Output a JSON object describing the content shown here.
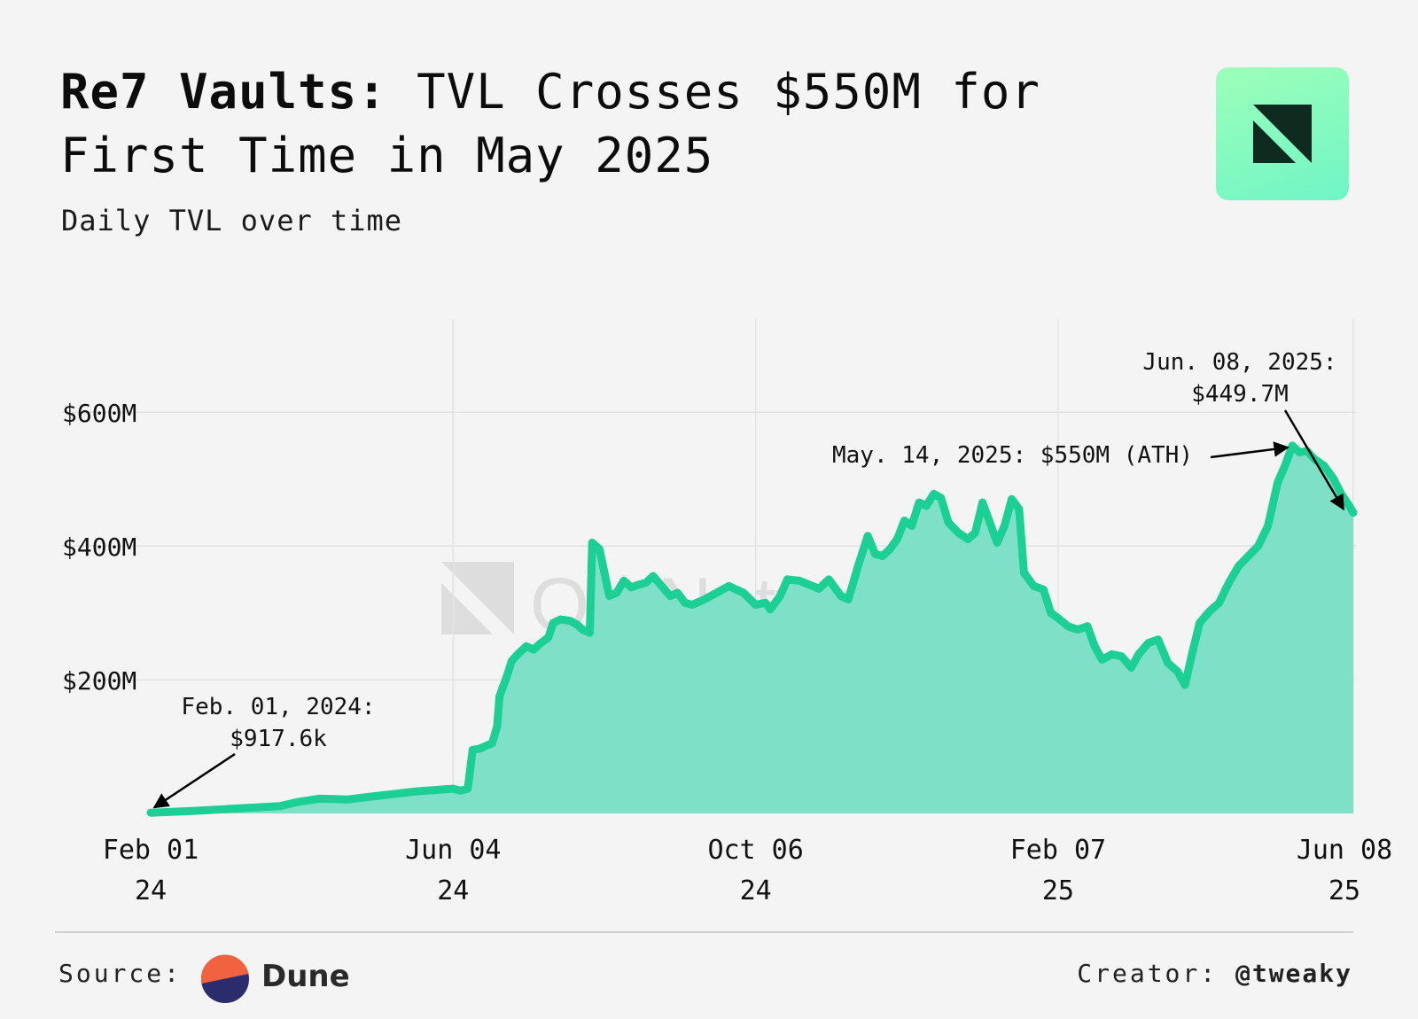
{
  "header": {
    "title_brand": "Re7 Vaults:",
    "title_rest": "TVL Crosses $550M for First Time in May 2025",
    "subtitle": "Daily TVL over time"
  },
  "watermark": "OurNetwork",
  "footer": {
    "source_label": "Source:",
    "source_name": "Dune",
    "creator_label": "Creator:",
    "creator_handle": "@tweaky"
  },
  "colors": {
    "line": "#1ccf94",
    "area": "#7ee0c6",
    "grid": "#e2e2e2",
    "logo_bg": "#8ffcc0",
    "dune_orange": "#f06240",
    "dune_navy": "#2b2c6b"
  },
  "chart_data": {
    "type": "area",
    "title": "Re7 Vaults: TVL Crosses $550M for First Time in May 2025",
    "subtitle": "Daily TVL over time",
    "xlabel": "",
    "ylabel": "",
    "ylim": [
      0,
      750
    ],
    "y_unit": "$M",
    "x_range": [
      "2024-02-01",
      "2025-06-08"
    ],
    "yticks": [
      {
        "value": 200,
        "label": "$200M"
      },
      {
        "value": 400,
        "label": "$400M"
      },
      {
        "value": 600,
        "label": "$600M"
      }
    ],
    "xticks": [
      {
        "date": "2024-02-01",
        "line1": "Feb 01",
        "line2": "24"
      },
      {
        "date": "2024-06-04",
        "line1": "Jun 04",
        "line2": "24"
      },
      {
        "date": "2024-10-06",
        "line1": "Oct 06",
        "line2": "24"
      },
      {
        "date": "2025-02-07",
        "line1": "Feb 07",
        "line2": "25"
      },
      {
        "date": "2025-06-08",
        "line1": "Jun 08",
        "line2": "25"
      }
    ],
    "grid": true,
    "legend": "none",
    "series": [
      {
        "points": [
          [
            "2024-02-01",
            1
          ],
          [
            "2024-02-20",
            4
          ],
          [
            "2024-03-15",
            9
          ],
          [
            "2024-03-25",
            11
          ],
          [
            "2024-04-01",
            17
          ],
          [
            "2024-04-10",
            22
          ],
          [
            "2024-04-22",
            21
          ],
          [
            "2024-05-01",
            25
          ],
          [
            "2024-05-20",
            33
          ],
          [
            "2024-06-04",
            37
          ],
          [
            "2024-06-07",
            34
          ],
          [
            "2024-06-10",
            37
          ],
          [
            "2024-06-12",
            95
          ],
          [
            "2024-06-15",
            97
          ],
          [
            "2024-06-20",
            105
          ],
          [
            "2024-06-22",
            130
          ],
          [
            "2024-06-23",
            175
          ],
          [
            "2024-06-26",
            205
          ],
          [
            "2024-06-28",
            228
          ],
          [
            "2024-07-01",
            240
          ],
          [
            "2024-07-04",
            250
          ],
          [
            "2024-07-07",
            245
          ],
          [
            "2024-07-10",
            255
          ],
          [
            "2024-07-13",
            263
          ],
          [
            "2024-07-15",
            285
          ],
          [
            "2024-07-18",
            290
          ],
          [
            "2024-07-22",
            288
          ],
          [
            "2024-07-25",
            282
          ],
          [
            "2024-07-27",
            275
          ],
          [
            "2024-07-30",
            270
          ],
          [
            "2024-07-31",
            405
          ],
          [
            "2024-08-03",
            395
          ],
          [
            "2024-08-05",
            360
          ],
          [
            "2024-08-07",
            325
          ],
          [
            "2024-08-10",
            330
          ],
          [
            "2024-08-13",
            348
          ],
          [
            "2024-08-16",
            338
          ],
          [
            "2024-08-19",
            342
          ],
          [
            "2024-08-22",
            345
          ],
          [
            "2024-08-25",
            355
          ],
          [
            "2024-08-28",
            342
          ],
          [
            "2024-09-01",
            325
          ],
          [
            "2024-09-04",
            330
          ],
          [
            "2024-09-07",
            315
          ],
          [
            "2024-09-10",
            312
          ],
          [
            "2024-09-15",
            320
          ],
          [
            "2024-09-20",
            330
          ],
          [
            "2024-09-25",
            340
          ],
          [
            "2024-10-01",
            330
          ],
          [
            "2024-10-06",
            312
          ],
          [
            "2024-10-10",
            315
          ],
          [
            "2024-10-12",
            305
          ],
          [
            "2024-10-16",
            325
          ],
          [
            "2024-10-19",
            350
          ],
          [
            "2024-10-24",
            348
          ],
          [
            "2024-10-28",
            342
          ],
          [
            "2024-11-01",
            336
          ],
          [
            "2024-11-05",
            350
          ],
          [
            "2024-11-10",
            325
          ],
          [
            "2024-11-13",
            320
          ],
          [
            "2024-11-17",
            370
          ],
          [
            "2024-11-21",
            415
          ],
          [
            "2024-11-24",
            388
          ],
          [
            "2024-11-27",
            385
          ],
          [
            "2024-11-30",
            395
          ],
          [
            "2024-12-03",
            410
          ],
          [
            "2024-12-06",
            438
          ],
          [
            "2024-12-09",
            430
          ],
          [
            "2024-12-12",
            465
          ],
          [
            "2024-12-15",
            460
          ],
          [
            "2024-12-18",
            478
          ],
          [
            "2024-12-21",
            472
          ],
          [
            "2024-12-24",
            435
          ],
          [
            "2024-12-28",
            420
          ],
          [
            "2025-01-01",
            410
          ],
          [
            "2025-01-04",
            420
          ],
          [
            "2025-01-07",
            465
          ],
          [
            "2025-01-10",
            435
          ],
          [
            "2025-01-13",
            405
          ],
          [
            "2025-01-16",
            430
          ],
          [
            "2025-01-19",
            470
          ],
          [
            "2025-01-22",
            455
          ],
          [
            "2025-01-24",
            360
          ],
          [
            "2025-01-28",
            340
          ],
          [
            "2025-02-01",
            335
          ],
          [
            "2025-02-04",
            300
          ],
          [
            "2025-02-07",
            292
          ],
          [
            "2025-02-11",
            280
          ],
          [
            "2025-02-15",
            275
          ],
          [
            "2025-02-19",
            280
          ],
          [
            "2025-02-22",
            250
          ],
          [
            "2025-02-25",
            230
          ],
          [
            "2025-03-01",
            238
          ],
          [
            "2025-03-05",
            235
          ],
          [
            "2025-03-09",
            218
          ],
          [
            "2025-03-12",
            238
          ],
          [
            "2025-03-16",
            255
          ],
          [
            "2025-03-20",
            260
          ],
          [
            "2025-03-24",
            225
          ],
          [
            "2025-03-28",
            212
          ],
          [
            "2025-03-31",
            192
          ],
          [
            "2025-04-03",
            240
          ],
          [
            "2025-04-06",
            285
          ],
          [
            "2025-04-10",
            302
          ],
          [
            "2025-04-14",
            315
          ],
          [
            "2025-04-18",
            345
          ],
          [
            "2025-04-22",
            370
          ],
          [
            "2025-04-26",
            385
          ],
          [
            "2025-04-30",
            400
          ],
          [
            "2025-05-04",
            430
          ],
          [
            "2025-05-08",
            495
          ],
          [
            "2025-05-11",
            520
          ],
          [
            "2025-05-14",
            550
          ],
          [
            "2025-05-17",
            540
          ],
          [
            "2025-05-20",
            542
          ],
          [
            "2025-05-23",
            530
          ],
          [
            "2025-05-27",
            520
          ],
          [
            "2025-05-31",
            500
          ],
          [
            "2025-06-03",
            478
          ],
          [
            "2025-06-06",
            462
          ],
          [
            "2025-06-08",
            449.7
          ]
        ]
      }
    ],
    "annotations": [
      {
        "date": "2024-02-01",
        "value": 0.9176,
        "line1": "Feb. 01, 2024:",
        "line2": "$917.6k"
      },
      {
        "date": "2025-05-14",
        "value": 550,
        "line1": "May. 14, 2025: $550M (ATH)",
        "line2": ""
      },
      {
        "date": "2025-06-08",
        "value": 449.7,
        "line1": "Jun. 08, 2025:",
        "line2": "$449.7M"
      }
    ]
  }
}
